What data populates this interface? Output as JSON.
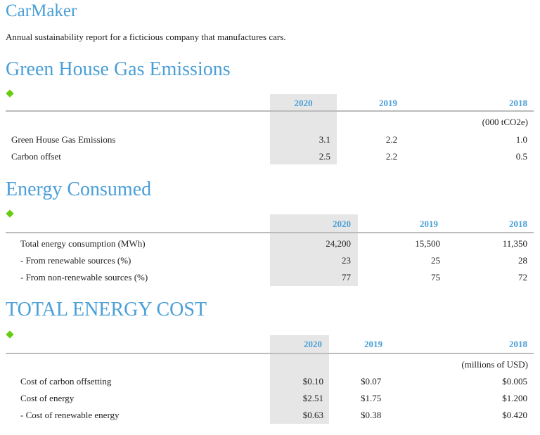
{
  "company": {
    "name": "CarMaker",
    "description": "Annual sustainability report for a ficticious company that manufactures cars."
  },
  "colors": {
    "heading": "#4a9fd8",
    "accent": "#66cc11",
    "highlight": "#e6e6e6",
    "rule": "#bcbcbc"
  },
  "sections": [
    {
      "title": "Green House Gas Emissions",
      "years": [
        "2020",
        "2019",
        "2018"
      ],
      "unit": "(000 tCO2e)",
      "rows": [
        {
          "label": "Green House Gas Emissions",
          "values": [
            "3.1",
            "2.2",
            "1.0"
          ]
        },
        {
          "label": "Carbon offset",
          "values": [
            "2.5",
            "2.2",
            "0.5"
          ]
        }
      ]
    },
    {
      "title": "Energy Consumed",
      "years": [
        "2020",
        "2019",
        "2018"
      ],
      "rows": [
        {
          "label": "Total energy consumption (MWh)",
          "values": [
            "24,200",
            "15,500",
            "11,350"
          ]
        },
        {
          "label": "- From renewable sources (%)",
          "values": [
            "23",
            "25",
            "28"
          ]
        },
        {
          "label": "- From non-renewable sources (%)",
          "values": [
            "77",
            "75",
            "72"
          ]
        }
      ]
    },
    {
      "title": "TOTAL ENERGY COST",
      "years": [
        "2020",
        "2019",
        "2018"
      ],
      "unit": "(millions of USD)",
      "rows": [
        {
          "label": "Cost of carbon offsetting",
          "values": [
            "$0.10",
            "$0.07",
            "$0.005"
          ]
        },
        {
          "label": "Cost of energy",
          "values": [
            "$2.51",
            "$1.75",
            "$1.200"
          ]
        },
        {
          "label": "- Cost of renewable energy",
          "values": [
            "$0.63",
            "$0.38",
            "$0.420"
          ]
        }
      ]
    }
  ]
}
